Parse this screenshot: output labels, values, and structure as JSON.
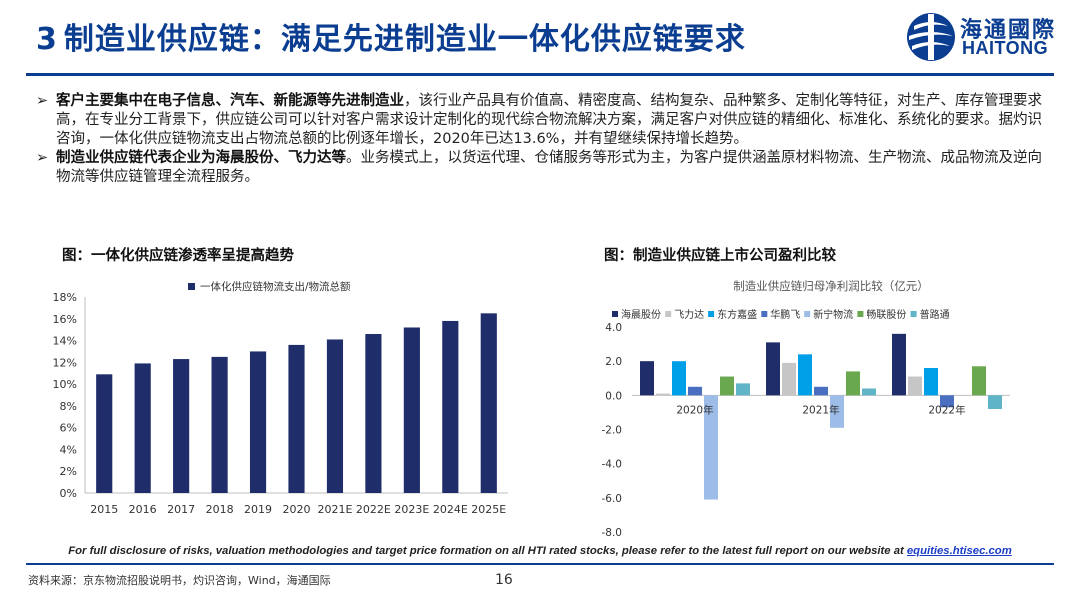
{
  "header": {
    "section_number": "3",
    "title": "制造业供应链：满足先进制造业一体化供应链要求",
    "logo_cn": "海通國際",
    "logo_en": "HAITONG",
    "brand_color": "#0b3d91"
  },
  "bullets": [
    {
      "bold": "客户主要集中在电子信息、汽车、新能源等先进制造业",
      "text": "，该行业产品具有价值高、精密度高、结构复杂、品种繁多、定制化等特征，对生产、库存管理要求高，在专业分工背景下，供应链公司可以针对客户需求设计定制化的现代综合物流解决方案，满足客户对供应链的精细化、标准化、系统化的要求。据灼识咨询，一体化供应链物流支出占物流总额的比例逐年增长，2020年已达13.6%，并有望继续保持增长趋势。"
    },
    {
      "bold": "制造业供应链代表企业为海晨股份、飞力达等",
      "text": "。业务模式上，以货运代理、仓储服务等形式为主，为客户提供涵盖原材料物流、生产物流、成品物流及逆向物流等供应链管理全流程服务。"
    }
  ],
  "figure_left_title": "图：一体化供应链渗透率呈提高趋势",
  "figure_right_title": "图：制造业供应链上市公司盈利比较",
  "chart_data": [
    {
      "type": "bar",
      "title": "",
      "legend": [
        "一体化供应链物流支出/物流总额"
      ],
      "categories": [
        "2015",
        "2016",
        "2017",
        "2018",
        "2019",
        "2020",
        "2021E",
        "2022E",
        "2023E",
        "2024E",
        "2025E"
      ],
      "values": [
        10.9,
        11.9,
        12.3,
        12.5,
        13.0,
        13.6,
        14.1,
        14.6,
        15.2,
        15.8,
        16.5
      ],
      "yticks": [
        "0%",
        "2%",
        "4%",
        "6%",
        "8%",
        "10%",
        "12%",
        "14%",
        "16%",
        "18%"
      ],
      "ylim": [
        0,
        18
      ],
      "color": "#1f2d6b"
    },
    {
      "type": "bar",
      "title": "制造业供应链归母净利润比较（亿元）",
      "categories": [
        "2020年",
        "2021年",
        "2022年"
      ],
      "series": [
        {
          "name": "海晨股份",
          "color": "#1f2d6b",
          "values": [
            2.0,
            3.1,
            3.6
          ]
        },
        {
          "name": "飞力达",
          "color": "#c6c6c6",
          "values": [
            0.1,
            1.9,
            1.1
          ]
        },
        {
          "name": "东方嘉盛",
          "color": "#00a0e9",
          "values": [
            2.0,
            2.4,
            1.6
          ]
        },
        {
          "name": "华鹏飞",
          "color": "#4a6fc0",
          "values": [
            0.5,
            0.5,
            -0.7
          ]
        },
        {
          "name": "新宁物流",
          "color": "#9dbde8",
          "values": [
            -6.1,
            -1.9,
            0.0
          ]
        },
        {
          "name": "畅联股份",
          "color": "#6aa84f",
          "values": [
            1.1,
            1.4,
            1.7
          ]
        },
        {
          "name": "普路通",
          "color": "#5fb4c8",
          "values": [
            0.7,
            0.4,
            -0.8
          ]
        }
      ],
      "yticks": [
        "4.0",
        "2.0",
        "0.0",
        "-2.0",
        "-4.0",
        "-6.0",
        "-8.0"
      ],
      "ylim": [
        -8,
        4
      ]
    }
  ],
  "disclaimer": {
    "text": "For full disclosure of risks, valuation methodologies and target price formation on all HTI rated stocks, please refer to the latest full report on our website at ",
    "link": "equities.htisec.com"
  },
  "footer": {
    "source": "资料来源：京东物流招股说明书，灼识咨询，Wind，海通国际",
    "page": "16"
  }
}
